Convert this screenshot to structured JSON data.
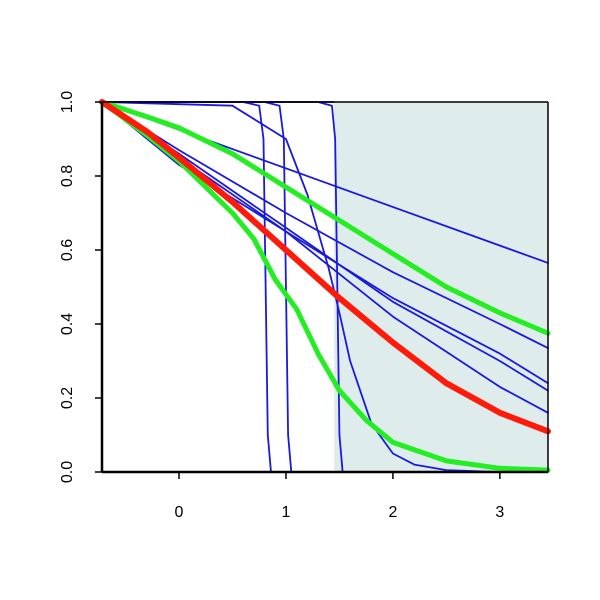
{
  "chart_data": {
    "type": "line",
    "title": "",
    "xlabel": "",
    "ylabel": "",
    "xlim": [
      -0.72,
      3.45
    ],
    "ylim": [
      0,
      1
    ],
    "x_ticks": [
      0,
      1,
      2,
      3
    ],
    "x_tick_labels": [
      "0",
      "1",
      "2",
      "3"
    ],
    "y_ticks": [
      0,
      0.2,
      0.4,
      0.6,
      0.8,
      1
    ],
    "y_tick_labels": [
      "0.0",
      "0.2",
      "0.4",
      "0.6",
      "0.8",
      "1.0"
    ],
    "grid": false,
    "shaded_region": {
      "x_from": 1.45,
      "x_to": 3.45,
      "color": "#dfecec"
    },
    "colors": {
      "samples": "#1a1adf",
      "mean": "#ff1a0a",
      "band": "#22ee22",
      "axis": "#000000"
    },
    "series": [
      {
        "role": "sample",
        "x": [
          -0.72,
          3.45
        ],
        "y": [
          1.0,
          0.565
        ]
      },
      {
        "role": "sample",
        "x": [
          -0.72,
          0.0,
          1.0,
          2.0,
          3.0,
          3.45
        ],
        "y": [
          1.0,
          0.87,
          0.7,
          0.54,
          0.4,
          0.335
        ]
      },
      {
        "role": "sample",
        "x": [
          -0.72,
          0.0,
          1.0,
          2.0,
          3.0,
          3.45
        ],
        "y": [
          1.0,
          0.85,
          0.65,
          0.47,
          0.32,
          0.24
        ]
      },
      {
        "role": "sample",
        "x": [
          -0.72,
          0.0,
          1.0,
          2.0,
          3.0,
          3.45
        ],
        "y": [
          1.0,
          0.86,
          0.66,
          0.46,
          0.3,
          0.22
        ]
      },
      {
        "role": "sample",
        "x": [
          -0.72,
          0.0,
          1.0,
          2.0,
          3.0,
          3.45
        ],
        "y": [
          1.0,
          0.83,
          0.65,
          0.42,
          0.23,
          0.16
        ]
      },
      {
        "role": "sample",
        "x": [
          -0.72,
          0.5,
          1.0,
          1.2,
          1.4,
          1.5,
          1.6,
          1.8,
          2.0,
          2.2,
          2.5,
          3.0,
          3.45
        ],
        "y": [
          1.0,
          0.99,
          0.9,
          0.75,
          0.55,
          0.43,
          0.3,
          0.13,
          0.05,
          0.02,
          0.005,
          0.0,
          0.0
        ]
      },
      {
        "role": "sample",
        "x": [
          -0.72,
          0.6,
          0.75,
          0.79,
          0.81,
          0.83,
          0.86,
          0.9,
          3.45
        ],
        "y": [
          1.0,
          1.0,
          0.99,
          0.9,
          0.5,
          0.1,
          0.0,
          0.0,
          0.0
        ]
      },
      {
        "role": "sample",
        "x": [
          -0.72,
          0.8,
          0.94,
          0.98,
          1.0,
          1.02,
          1.05,
          1.1,
          3.45
        ],
        "y": [
          1.0,
          1.0,
          0.99,
          0.9,
          0.5,
          0.1,
          0.0,
          0.0,
          0.0
        ]
      },
      {
        "role": "sample",
        "x": [
          -0.72,
          1.3,
          1.43,
          1.46,
          1.48,
          1.5,
          1.53,
          1.58,
          3.45
        ],
        "y": [
          1.0,
          1.0,
          0.99,
          0.9,
          0.5,
          0.1,
          0.0,
          0.0,
          0.0
        ]
      },
      {
        "role": "sample",
        "x": [
          -0.72,
          1.45
        ],
        "y": [
          1.0,
          1.0
        ]
      },
      {
        "role": "mean",
        "x": [
          -0.72,
          -0.3,
          0.0,
          0.5,
          1.0,
          1.5,
          2.0,
          2.5,
          3.0,
          3.45
        ],
        "y": [
          1.0,
          0.92,
          0.85,
          0.73,
          0.6,
          0.47,
          0.35,
          0.24,
          0.16,
          0.11
        ]
      },
      {
        "role": "band",
        "x": [
          -0.72,
          -0.3,
          0.0,
          0.5,
          1.0,
          1.5,
          2.0,
          2.5,
          3.0,
          3.45
        ],
        "y": [
          1.0,
          0.96,
          0.93,
          0.86,
          0.77,
          0.68,
          0.59,
          0.5,
          0.43,
          0.375
        ]
      },
      {
        "role": "band",
        "x": [
          -0.72,
          -0.3,
          0.0,
          0.5,
          0.7,
          0.9,
          1.1,
          1.3,
          1.5,
          1.75,
          2.0,
          2.5,
          3.0,
          3.45
        ],
        "y": [
          1.0,
          0.91,
          0.84,
          0.7,
          0.63,
          0.52,
          0.44,
          0.32,
          0.22,
          0.14,
          0.08,
          0.03,
          0.01,
          0.005
        ]
      }
    ]
  }
}
